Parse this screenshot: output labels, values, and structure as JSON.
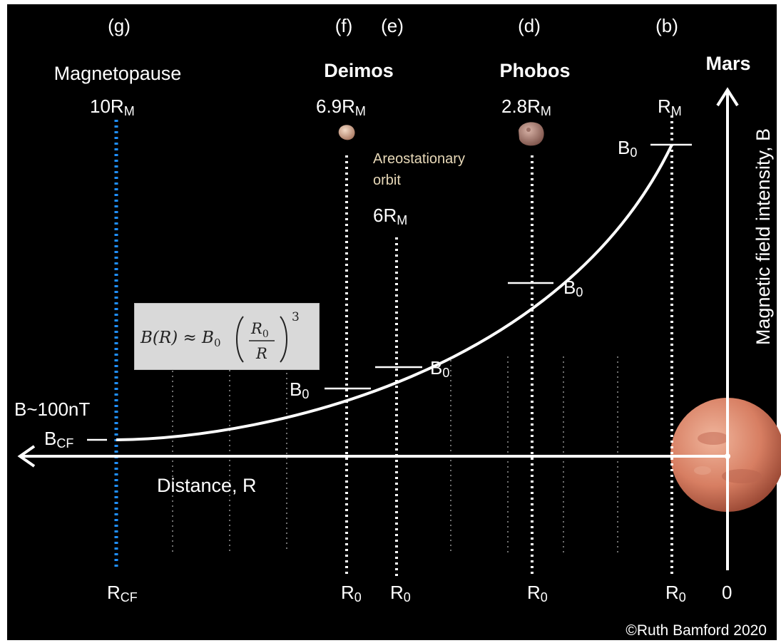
{
  "colors": {
    "background": "#000000",
    "frame": "#ffffff",
    "text": "#ffffff",
    "magnetopause_line": "#1f8fff",
    "orbit_line": "#ffffff",
    "faint_line": "#6f6f6f",
    "areostationary_text": "#e8d9b8",
    "formula_box": "#d9d9d9",
    "mars": "#d9826a",
    "phobos": "#b98a7e",
    "deimos": "#e2c1a8"
  },
  "columns": {
    "g": {
      "letter": "(g)",
      "name": "Magnetopause",
      "distance_num": "10R",
      "distance_sub": "M",
      "bottom_main": "R",
      "bottom_sub": "CF"
    },
    "f": {
      "letter": "(f)",
      "name": "Deimos",
      "distance_num": "6.9R",
      "distance_sub": "M",
      "bottom_main": "R",
      "bottom_sub": "0"
    },
    "e": {
      "letter": "(e)",
      "name_line1": "Areostationary",
      "name_line2": "orbit",
      "distance_num": "6R",
      "distance_sub": "M",
      "bottom_main": "R",
      "bottom_sub": "0"
    },
    "d": {
      "letter": "(d)",
      "name": "Phobos",
      "distance_num": "2.8R",
      "distance_sub": "M",
      "bottom_main": "R",
      "bottom_sub": "0"
    },
    "b": {
      "letter": "(b)",
      "distance_num": "R",
      "distance_sub": "M",
      "bottom_main": "R",
      "bottom_sub": "0"
    }
  },
  "markers": {
    "b0_main": "B",
    "b0_sub": "0",
    "bcf_main": "B",
    "bcf_sub": "CF",
    "b100": "B~100nT"
  },
  "axes": {
    "x_label": "Distance, R",
    "y_label": "Magnetic field intensity, B",
    "mars_label": "Mars",
    "origin": "0"
  },
  "formula": {
    "lhs": "B(R) ≈ B",
    "lhs_sub": "0",
    "num": "R",
    "num_sub": "0",
    "den": "R",
    "power": "3"
  },
  "copyright": "©Ruth Bamford 2020"
}
